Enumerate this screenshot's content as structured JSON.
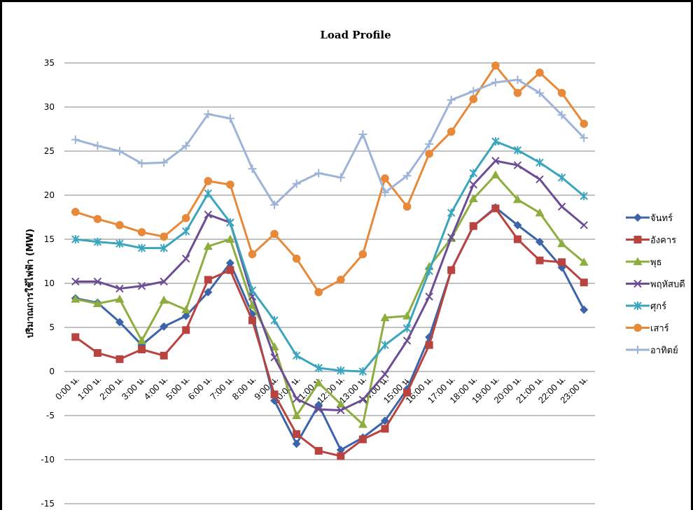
{
  "chart_data": {
    "type": "line",
    "title": "Load Profile",
    "ylabel": "ปริมาณการใช้ไฟฟ้า  (MW)",
    "xlabel": "",
    "ylim": [
      -15,
      35
    ],
    "yticks": [
      35,
      30,
      25,
      20,
      15,
      10,
      5,
      0,
      -5,
      -10,
      -15
    ],
    "grid": true,
    "legend_position": "right",
    "categories": [
      "0:00 น.",
      "1:00 น.",
      "2:00 น.",
      "3:00 น.",
      "4:00 น.",
      "5:00 น.",
      "6:00 น.",
      "7:00 น.",
      "8:00 น.",
      "9:00 น.",
      "10:00 น.",
      "11:00 น.",
      "12:00 น.",
      "13:00 น.",
      "14:00 น.",
      "15:00 น.",
      "16:00 น.",
      "17:00 น.",
      "18:00 น.",
      "19:00 น.",
      "20:00 น.",
      "21:00 น.",
      "22:00 น.",
      "23:00 น."
    ],
    "series": [
      {
        "name": "จันทร์",
        "color": "#3c64a8",
        "marker": "diamond",
        "values": [
          8.3,
          7.8,
          5.6,
          3.0,
          5.1,
          6.3,
          9.0,
          12.3,
          6.5,
          -3.3,
          -8.2,
          -3.8,
          -8.9,
          -7.5,
          -5.6,
          -2.0,
          3.9,
          11.5,
          16.5,
          18.6,
          16.6,
          14.7,
          11.8,
          7.0
        ]
      },
      {
        "name": "อังคาร",
        "color": "#b8433f",
        "marker": "square",
        "values": [
          3.9,
          2.1,
          1.4,
          2.5,
          1.8,
          4.7,
          10.4,
          11.5,
          5.8,
          -2.6,
          -7.1,
          -9.0,
          -9.6,
          -7.7,
          -6.5,
          -2.4,
          3.0,
          11.5,
          16.5,
          18.5,
          15.0,
          12.6,
          12.4,
          10.1
        ]
      },
      {
        "name": "พุธ",
        "color": "#8ead3f",
        "marker": "triangle",
        "values": [
          8.2,
          7.7,
          8.2,
          3.5,
          8.1,
          7.0,
          14.2,
          15.0,
          7.5,
          2.8,
          -5.0,
          -1.3,
          -3.7,
          -6.0,
          6.1,
          6.3,
          11.9,
          15.1,
          19.6,
          22.3,
          19.5,
          18.0,
          14.5,
          12.4
        ]
      },
      {
        "name": "พฤหัสบดี",
        "color": "#6c4d95",
        "marker": "x",
        "values": [
          10.2,
          10.2,
          9.4,
          9.7,
          10.2,
          12.8,
          17.8,
          16.9,
          8.5,
          1.6,
          -3.1,
          -4.3,
          -4.4,
          -3.2,
          -0.3,
          3.5,
          8.5,
          15.2,
          21.2,
          23.9,
          23.4,
          21.8,
          18.7,
          16.6
        ]
      },
      {
        "name": "ศุกร์",
        "color": "#3aa5bd",
        "marker": "asterisk",
        "values": [
          15.0,
          14.7,
          14.5,
          14.0,
          14.0,
          15.9,
          20.2,
          16.9,
          9.2,
          5.8,
          1.8,
          0.4,
          0.1,
          0.0,
          3.0,
          4.9,
          11.4,
          18.0,
          22.5,
          26.1,
          25.1,
          23.7,
          22.0,
          19.9
        ]
      },
      {
        "name": "เสาร์",
        "color": "#e8893a",
        "marker": "circle",
        "values": [
          18.1,
          17.3,
          16.6,
          15.8,
          15.3,
          17.4,
          21.6,
          21.2,
          13.3,
          15.6,
          12.8,
          9.0,
          10.4,
          13.3,
          21.9,
          18.7,
          24.7,
          27.2,
          30.9,
          34.7,
          31.6,
          33.9,
          31.6,
          28.1
        ]
      },
      {
        "name": "อาทิตย์",
        "color": "#9db3d8",
        "marker": "plus",
        "values": [
          26.3,
          25.6,
          25.0,
          23.6,
          23.7,
          25.6,
          29.2,
          28.7,
          23.0,
          18.9,
          21.3,
          22.5,
          22.0,
          26.9,
          20.3,
          22.2,
          25.8,
          30.8,
          31.8,
          32.8,
          33.1,
          31.6,
          29.1,
          26.5
        ]
      }
    ]
  }
}
